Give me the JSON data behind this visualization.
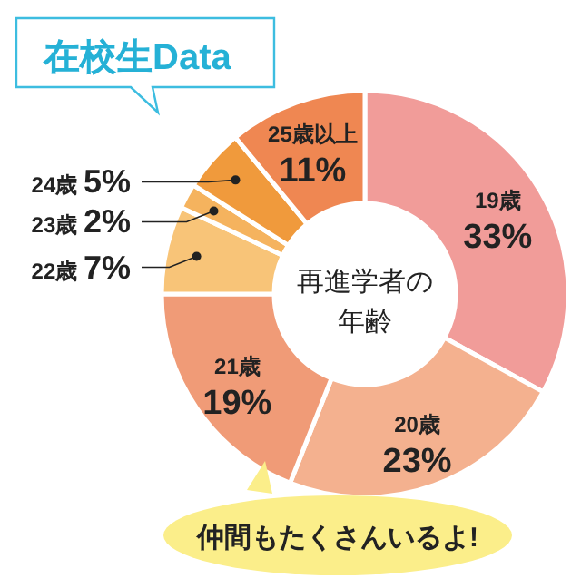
{
  "chart_data": {
    "type": "donut",
    "title": "在校生Data",
    "categories": [
      "19歳",
      "20歳",
      "21歳",
      "22歳",
      "23歳",
      "24歳",
      "25歳以上"
    ],
    "values": [
      33,
      23,
      19,
      7,
      2,
      5,
      11
    ],
    "value_labels": [
      "33%",
      "23%",
      "19%",
      "7%",
      "2%",
      "5%",
      "11%"
    ],
    "colors": [
      "#f19c99",
      "#f4b18f",
      "#f09b77",
      "#f8c478",
      "#f5b35e",
      "#f09a3c",
      "#ef8752"
    ],
    "annotations": [
      "再進学者の年齢",
      "仲間もたくさんいるよ!"
    ]
  }
}
